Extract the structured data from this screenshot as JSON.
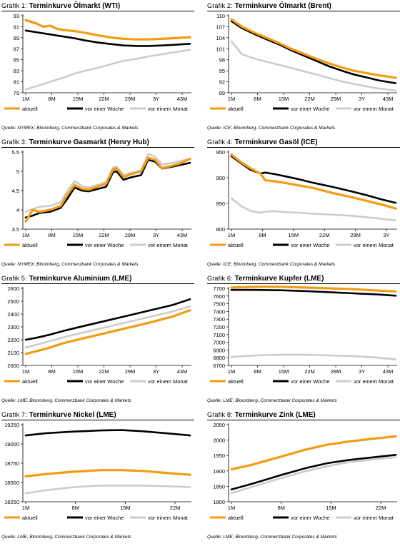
{
  "legend_labels": [
    "aktuell",
    "vor einer Woche",
    "vor einem Monat"
  ],
  "colors": {
    "aktuell": "#f39c12",
    "woche": "#000000",
    "monat": "#cccccc"
  },
  "panels": [
    {
      "prefix": "Grafik 1:",
      "title": "Terminkurve Ölmarkt (WTI)",
      "source": "Quelle: NYMEX; Bloomberg, Commerzbank Corporates & Markets"
    },
    {
      "prefix": "Grafik 2:",
      "title": "Terminkurve Ölmarkt (Brent)",
      "source": "Quelle: ICE; Bloomberg, Commerzbank Corporates & Markets"
    },
    {
      "prefix": "Grafik 3:",
      "title": "Terminkurve Gasmarkt (Henry Hub)",
      "source": "Quelle: NYMEX; Bloomberg, Commerzbank Corporates & Markets"
    },
    {
      "prefix": "Grafik 4:",
      "title": "Terminkurve Gasöl (ICE)",
      "source": "Quelle: ICE; Bloomberg, Commerzbank Corporates & Markets"
    },
    {
      "prefix": "Grafik 5:",
      "title": "Terminkurve Aluminium (LME)",
      "source": "Quelle: LME; Bloomberg, Commerzbank Corporates & Markets"
    },
    {
      "prefix": "Grafik 6:",
      "title": "Terminkurve Kupfer (LME)",
      "source": "Quelle: LME; Bloomberg, Commerzbank Corporates & Markets"
    },
    {
      "prefix": "Grafik 7:",
      "title": "Terminkurve Nickel (LME)",
      "source": "Quelle: LME; Bloomberg, Commerzbank Corporates & Markets"
    },
    {
      "prefix": "Grafik 8:",
      "title": "Terminkurve Zink (LME)",
      "source": "Quelle: LME; Bloomberg, Commerzbank Corporates & Markets"
    }
  ],
  "chart_data": [
    {
      "type": "line",
      "title": "Terminkurve Ölmarkt (WTI)",
      "ylim": [
        79,
        93
      ],
      "yticks": [
        79,
        81,
        83,
        85,
        87,
        89,
        91,
        93
      ],
      "xticks": [
        "1M",
        "8M",
        "15M",
        "22M",
        "29M",
        "3Y",
        "43M"
      ],
      "x": [
        1,
        4,
        6,
        8,
        10,
        12,
        15,
        18,
        22,
        26,
        29,
        33,
        36,
        40,
        43,
        48
      ],
      "series": [
        {
          "name": "aktuell",
          "values": [
            92.2,
            91.6,
            91.0,
            91.2,
            90.6,
            90.4,
            90.2,
            89.9,
            89.4,
            89.0,
            88.8,
            88.7,
            88.7,
            88.8,
            88.9,
            89.1
          ]
        },
        {
          "name": "vor einer Woche",
          "values": [
            90.3,
            90.0,
            89.8,
            89.6,
            89.4,
            89.2,
            88.9,
            88.5,
            88.1,
            87.8,
            87.6,
            87.5,
            87.5,
            87.6,
            87.7,
            87.9
          ]
        },
        {
          "name": "vor einem Monat",
          "values": [
            79.6,
            80.2,
            80.6,
            81.0,
            81.4,
            81.8,
            82.5,
            83.0,
            83.6,
            84.3,
            84.8,
            85.2,
            85.6,
            86.0,
            86.3,
            86.8
          ]
        }
      ]
    },
    {
      "type": "line",
      "title": "Terminkurve Ölmarkt (Brent)",
      "ylim": [
        89,
        110
      ],
      "yticks": [
        89,
        92,
        95,
        98,
        101,
        104,
        107,
        110
      ],
      "xticks": [
        "1M",
        "8M",
        "15M",
        "22M",
        "29M",
        "3Y",
        "43M"
      ],
      "x": [
        1,
        4,
        8,
        12,
        15,
        18,
        22,
        26,
        29,
        33,
        36,
        40,
        43,
        48
      ],
      "series": [
        {
          "name": "aktuell",
          "values": [
            109.0,
            107.0,
            105.2,
            103.6,
            102.4,
            101.0,
            99.5,
            98.0,
            97.0,
            95.8,
            95.0,
            94.3,
            93.8,
            93.1
          ]
        },
        {
          "name": "vor einer Woche",
          "values": [
            108.5,
            106.6,
            104.8,
            103.2,
            102.0,
            100.6,
            99.0,
            97.4,
            96.2,
            94.9,
            94.0,
            93.1,
            92.4,
            91.6
          ]
        },
        {
          "name": "vor einem Monat",
          "values": [
            103.0,
            99.5,
            98.2,
            97.2,
            96.5,
            95.8,
            94.8,
            93.8,
            93.0,
            92.0,
            91.4,
            90.7,
            90.2,
            89.6
          ]
        }
      ]
    },
    {
      "type": "line",
      "title": "Terminkurve Gasmarkt (Henry Hub)",
      "ylim": [
        3.5,
        5.5
      ],
      "yticks": [
        3.5,
        4.0,
        4.5,
        5.0,
        5.5
      ],
      "xticks": [
        "1M",
        "8M",
        "15M",
        "22M",
        "29M",
        "3Y",
        "43M"
      ],
      "x": [
        1,
        3,
        5,
        8,
        11,
        13,
        15,
        17,
        19,
        22,
        24,
        26,
        27,
        29,
        31,
        34,
        36,
        38,
        40,
        43,
        45,
        48
      ],
      "series": [
        {
          "name": "aktuell",
          "values": [
            3.7,
            4.0,
            3.95,
            4.0,
            4.1,
            4.4,
            4.65,
            4.55,
            4.52,
            4.62,
            4.68,
            5.05,
            5.08,
            4.85,
            4.92,
            5.0,
            5.35,
            5.3,
            5.08,
            5.15,
            5.2,
            5.32
          ]
        },
        {
          "name": "vor einer Woche",
          "values": [
            3.8,
            3.85,
            3.92,
            3.95,
            4.05,
            4.3,
            4.58,
            4.5,
            4.48,
            4.55,
            4.6,
            4.98,
            5.0,
            4.78,
            4.84,
            4.9,
            5.3,
            5.25,
            5.07,
            5.12,
            5.16,
            5.22
          ]
        },
        {
          "name": "vor einem Monat",
          "values": [
            3.95,
            4.02,
            4.08,
            4.1,
            4.2,
            4.5,
            4.75,
            4.62,
            4.58,
            4.66,
            4.72,
            5.1,
            5.12,
            4.9,
            4.96,
            5.02,
            5.45,
            5.38,
            5.18,
            5.22,
            5.26,
            5.32
          ]
        }
      ]
    },
    {
      "type": "line",
      "title": "Terminkurve Gasöl (ICE)",
      "ylim": [
        800,
        950
      ],
      "yticks": [
        800,
        850,
        900,
        950
      ],
      "xticks": [
        "1M",
        "8M",
        "15M",
        "22M",
        "29M",
        "3Y"
      ],
      "x": [
        1,
        3,
        5,
        7,
        8,
        10,
        12,
        15,
        18,
        22,
        26,
        29,
        32,
        35
      ],
      "series": [
        {
          "name": "aktuell",
          "values": [
            945,
            930,
            918,
            908,
            895,
            893,
            890,
            885,
            880,
            870,
            862,
            855,
            848,
            840
          ]
        },
        {
          "name": "vor einer Woche",
          "values": [
            942,
            928,
            915,
            908,
            910,
            907,
            903,
            897,
            890,
            882,
            873,
            866,
            858,
            851
          ]
        },
        {
          "name": "vor einem Monat",
          "values": [
            860,
            845,
            835,
            832,
            834,
            835,
            833,
            832,
            830,
            828,
            826,
            823,
            820,
            817
          ]
        }
      ]
    },
    {
      "type": "line",
      "title": "Terminkurve Aluminium (LME)",
      "ylim": [
        2000,
        2600
      ],
      "yticks": [
        2000,
        2100,
        2200,
        2300,
        2400,
        2500,
        2600
      ],
      "xticks": [
        "1M",
        "8M",
        "15M",
        "22M",
        "29M",
        "3Y",
        "43M"
      ],
      "x": [
        1,
        4,
        8,
        12,
        15,
        22,
        29,
        36,
        43,
        48
      ],
      "series": [
        {
          "name": "aktuell",
          "values": [
            2090,
            2110,
            2140,
            2175,
            2195,
            2240,
            2285,
            2330,
            2380,
            2430
          ]
        },
        {
          "name": "vor einer Woche",
          "values": [
            2200,
            2215,
            2240,
            2270,
            2290,
            2335,
            2380,
            2425,
            2470,
            2515
          ]
        },
        {
          "name": "vor einem Monat",
          "values": [
            2140,
            2160,
            2190,
            2220,
            2240,
            2285,
            2330,
            2375,
            2420,
            2460
          ]
        }
      ]
    },
    {
      "type": "line",
      "title": "Terminkurve Kupfer (LME)",
      "ylim": [
        6700,
        7700
      ],
      "yticks": [
        6700,
        6800,
        6900,
        7000,
        7100,
        7200,
        7300,
        7400,
        7500,
        7600,
        7700
      ],
      "xticks": [
        "1M",
        "8M",
        "15M",
        "22M",
        "29M",
        "3Y",
        "43M"
      ],
      "x": [
        1,
        8,
        15,
        22,
        29,
        36,
        43,
        48
      ],
      "series": [
        {
          "name": "aktuell",
          "values": [
            7710,
            7720,
            7720,
            7710,
            7700,
            7690,
            7670,
            7660
          ]
        },
        {
          "name": "vor einer Woche",
          "values": [
            7680,
            7680,
            7675,
            7665,
            7650,
            7635,
            7620,
            7605
          ]
        },
        {
          "name": "vor einem Monat",
          "values": [
            6810,
            6830,
            6840,
            6840,
            6830,
            6820,
            6800,
            6780
          ]
        }
      ]
    },
    {
      "type": "line",
      "title": "Terminkurve Nickel (LME)",
      "ylim": [
        18250,
        19250
      ],
      "yticks": [
        18250,
        18500,
        18750,
        19000,
        19250
      ],
      "xticks": [
        "1M",
        "8M",
        "15M",
        "22M"
      ],
      "x": [
        1,
        4,
        8,
        12,
        15,
        18,
        22,
        25
      ],
      "series": [
        {
          "name": "aktuell",
          "values": [
            18580,
            18610,
            18640,
            18660,
            18660,
            18650,
            18620,
            18600
          ]
        },
        {
          "name": "vor einer Woche",
          "values": [
            19110,
            19140,
            19160,
            19175,
            19180,
            19165,
            19135,
            19110
          ]
        },
        {
          "name": "vor einem Monat",
          "values": [
            18360,
            18400,
            18440,
            18460,
            18460,
            18460,
            18450,
            18440
          ]
        }
      ]
    },
    {
      "type": "line",
      "title": "Terminkurve Zink (LME)",
      "ylim": [
        1800,
        2050
      ],
      "yticks": [
        1800,
        1850,
        1900,
        1950,
        2000,
        2050
      ],
      "xticks": [
        "1M",
        "8M",
        "15M",
        "22M"
      ],
      "x": [
        1,
        4,
        8,
        12,
        15,
        18,
        22,
        25
      ],
      "series": [
        {
          "name": "aktuell",
          "values": [
            1905,
            1920,
            1945,
            1970,
            1985,
            1995,
            2005,
            2012
          ]
        },
        {
          "name": "vor einer Woche",
          "values": [
            1840,
            1858,
            1885,
            1910,
            1925,
            1935,
            1945,
            1952
          ]
        },
        {
          "name": "vor einem Monat",
          "values": [
            1828,
            1848,
            1875,
            1900,
            1915,
            1928,
            1938,
            1945
          ]
        }
      ]
    }
  ]
}
